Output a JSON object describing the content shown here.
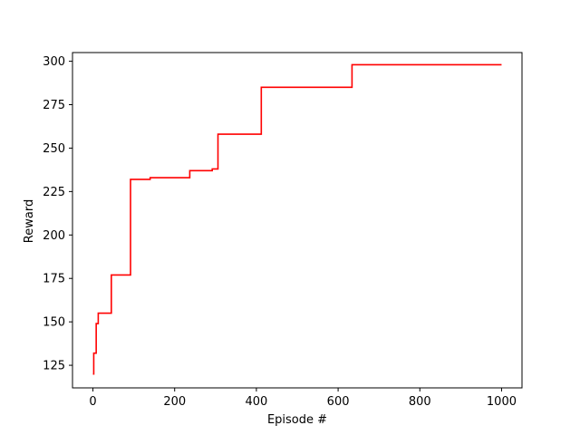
{
  "chart_data": {
    "type": "line",
    "title": "",
    "xlabel": "Episode #",
    "ylabel": "Reward",
    "xlim": [
      -50,
      1050
    ],
    "ylim": [
      112,
      305
    ],
    "xticks": [
      0,
      200,
      400,
      600,
      800,
      1000
    ],
    "xtick_labels": [
      "0",
      "200",
      "400",
      "600",
      "800",
      "1000"
    ],
    "yticks": [
      125,
      150,
      175,
      200,
      225,
      250,
      275,
      300
    ],
    "ytick_labels": [
      "125",
      "150",
      "175",
      "200",
      "225",
      "250",
      "275",
      "300"
    ],
    "grid": false,
    "legend": "none",
    "series": [
      {
        "color": "#ff0000",
        "step": true,
        "x": [
          0,
          2,
          8,
          13,
          45,
          92,
          140,
          237,
          292,
          306,
          412,
          634,
          1000
        ],
        "y": [
          120,
          132,
          149,
          155,
          177,
          232,
          233,
          237,
          238,
          258,
          285,
          298,
          298
        ]
      }
    ]
  },
  "colors": {
    "line": "#ff0000",
    "axes": "#000000",
    "background": "#ffffff"
  }
}
